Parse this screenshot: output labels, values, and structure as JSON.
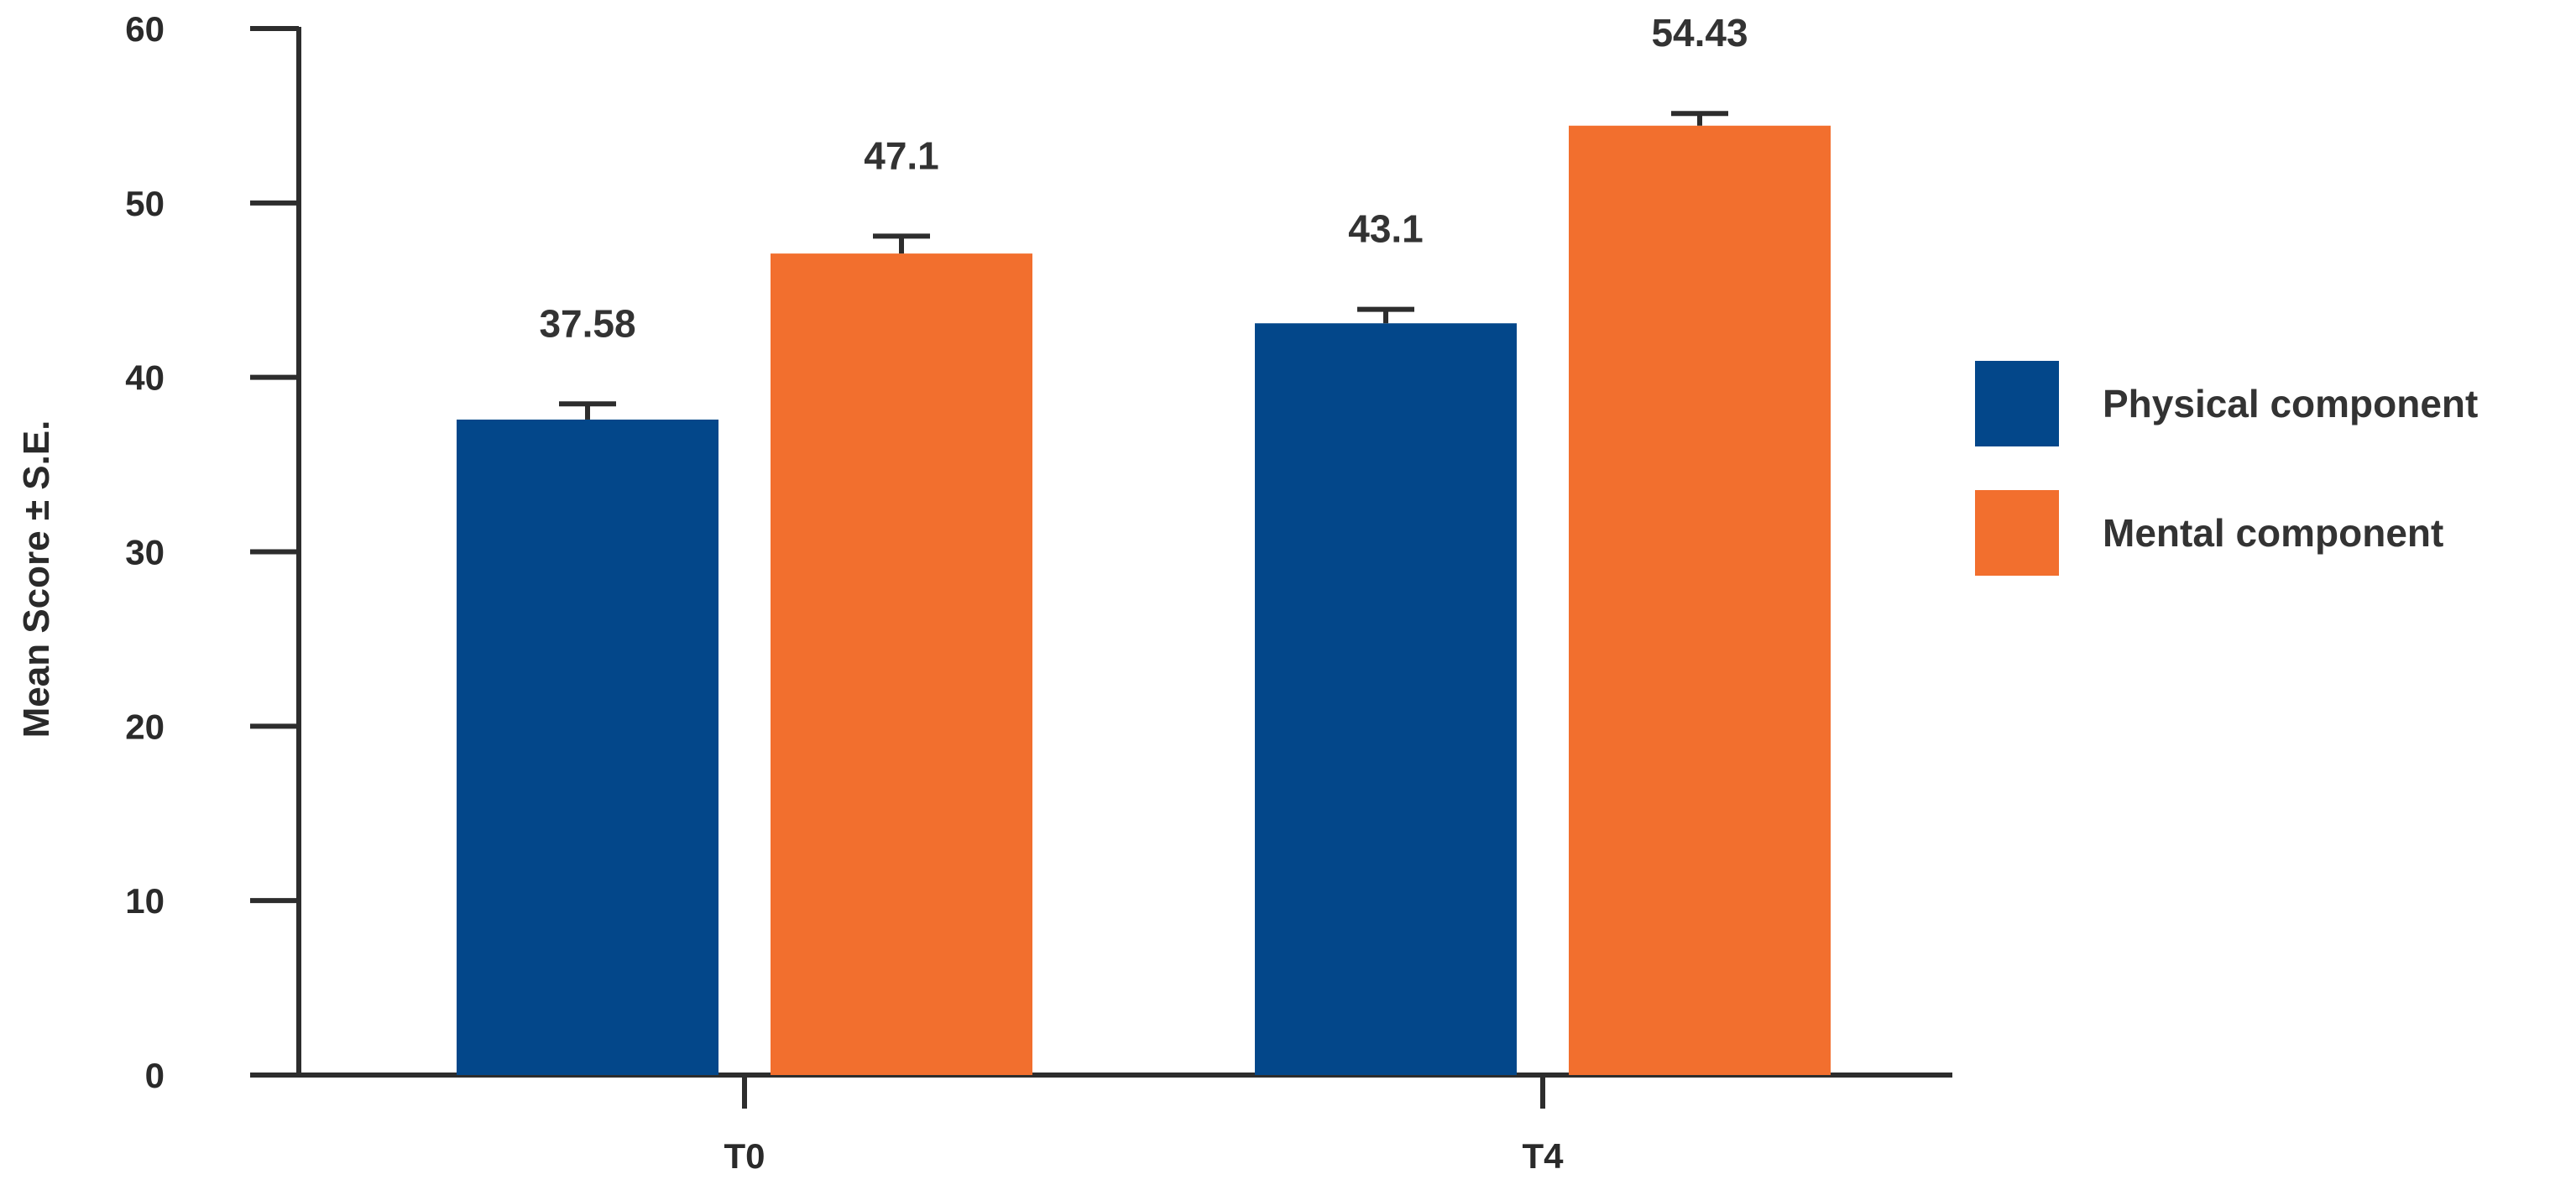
{
  "chart_data": {
    "type": "bar",
    "categories": [
      "T0",
      "T4"
    ],
    "series": [
      {
        "name": "Physical component",
        "values": [
          37.58,
          43.1
        ],
        "error": [
          0.9,
          0.8
        ],
        "labels": [
          "37.58",
          "43.1"
        ],
        "color": "#03478a"
      },
      {
        "name": "Mental component",
        "values": [
          47.1,
          54.43
        ],
        "error": [
          1.0,
          0.7
        ],
        "labels": [
          "47.1",
          "54.43"
        ],
        "color": "#f26f2e"
      }
    ],
    "ylabel": "Mean Score ± S.E.",
    "ylim": [
      0,
      60
    ],
    "yticks": [
      0,
      10,
      20,
      30,
      40,
      50,
      60
    ],
    "grid": false,
    "legend_position": "right"
  }
}
